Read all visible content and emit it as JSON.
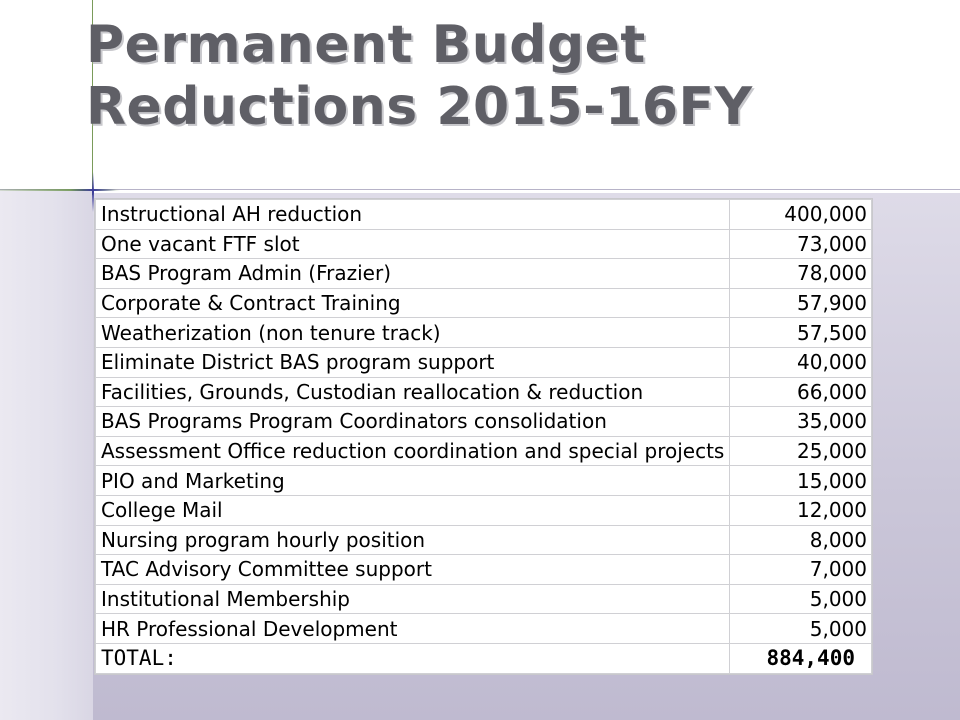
{
  "slide": {
    "title_line1": "Permanent Budget",
    "title_line2": "Reductions 2015-16FY"
  },
  "table": {
    "rows": [
      {
        "item": "Instructional AH reduction",
        "amount": "400,000"
      },
      {
        "item": "One vacant FTF slot",
        "amount": "73,000"
      },
      {
        "item": "BAS Program Admin (Frazier)",
        "amount": "78,000"
      },
      {
        "item": "Corporate & Contract Training",
        "amount": "57,900"
      },
      {
        "item": "Weatherization (non tenure track)",
        "amount": "57,500"
      },
      {
        "item": "Eliminate District BAS program support",
        "amount": "40,000"
      },
      {
        "item": "Facilities, Grounds, Custodian reallocation & reduction",
        "amount": "66,000"
      },
      {
        "item": "BAS Programs Program Coordinators consolidation",
        "amount": "35,000"
      },
      {
        "item": "Assessment Office reduction coordination and special projects",
        "amount": "25,000"
      },
      {
        "item": "PIO and Marketing",
        "amount": "15,000"
      },
      {
        "item": "College Mail",
        "amount": "12,000"
      },
      {
        "item": "Nursing program hourly position",
        "amount": "8,000"
      },
      {
        "item": "TAC Advisory Committee support",
        "amount": "7,000"
      },
      {
        "item": "Institutional Membership",
        "amount": "5,000"
      },
      {
        "item": "HR Professional Development",
        "amount": "5,000"
      }
    ],
    "total_label": "TOTAL:",
    "total_amount": "884,400"
  },
  "colors": {
    "title": "#5f5f66",
    "accent_line": "#6e9650",
    "star": "#3b3b9a"
  }
}
